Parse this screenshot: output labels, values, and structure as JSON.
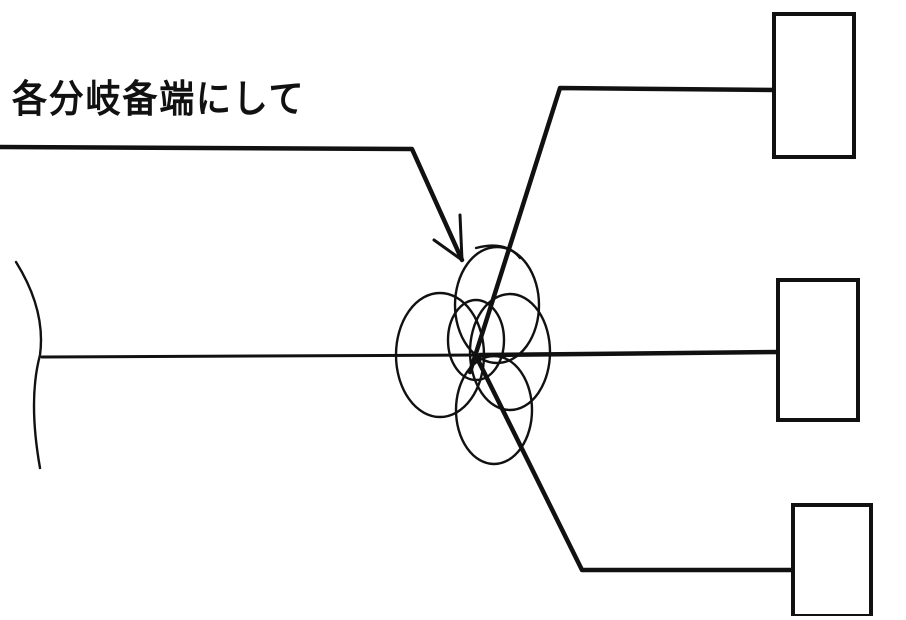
{
  "annotation": {
    "label": "各分岐备端にして"
  }
}
